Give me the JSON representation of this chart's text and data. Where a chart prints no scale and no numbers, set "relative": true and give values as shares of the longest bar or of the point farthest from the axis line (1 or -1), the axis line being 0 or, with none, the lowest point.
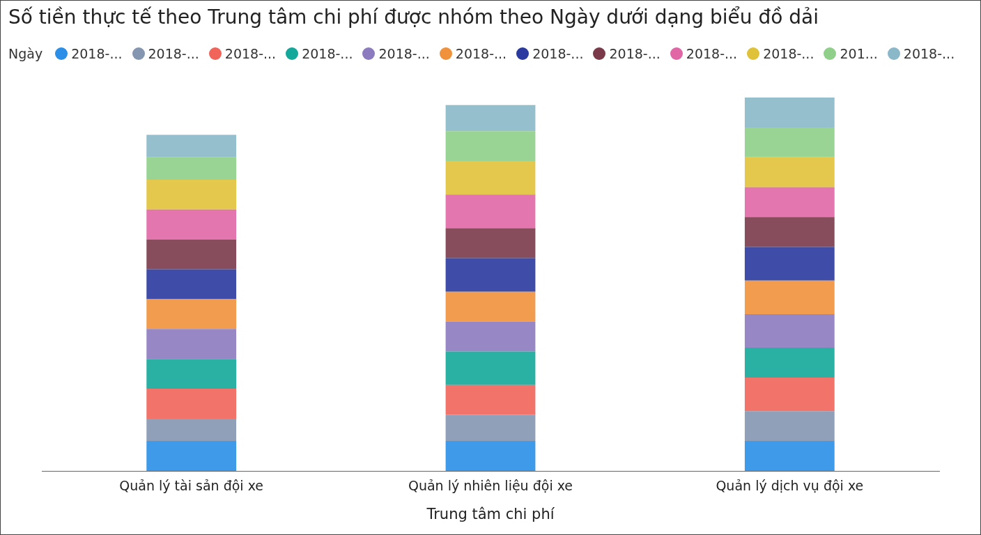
{
  "chart_data": {
    "type": "bar",
    "title": "Số tiền thực tế theo Trung tâm chi phí được nhóm theo Ngày dưới dạng biểu đồ dải",
    "xlabel": "Trung tâm chi phí",
    "legend_title": "Ngày",
    "legend": "top left",
    "stacked": true,
    "relative": true,
    "grid": false,
    "categories": [
      "Quản lý tài sản đội xe",
      "Quản lý nhiên liệu đội xe",
      "Quản lý dịch vụ đội xe"
    ],
    "series": [
      {
        "name": "2018-...",
        "color": "#2b8fe8",
        "values": [
          0.08,
          0.08,
          0.08
        ]
      },
      {
        "name": "2018-...",
        "color": "#8496b0",
        "values": [
          0.06,
          0.07,
          0.08
        ]
      },
      {
        "name": "2018-...",
        "color": "#f0645a",
        "values": [
          0.08,
          0.08,
          0.09
        ]
      },
      {
        "name": "2018-...",
        "color": "#14a89a",
        "values": [
          0.08,
          0.09,
          0.08
        ]
      },
      {
        "name": "2018-...",
        "color": "#8c7bbf",
        "values": [
          0.08,
          0.08,
          0.09
        ]
      },
      {
        "name": "2018-...",
        "color": "#f0913c",
        "values": [
          0.08,
          0.08,
          0.09
        ]
      },
      {
        "name": "2018-...",
        "color": "#2a3a9e",
        "values": [
          0.08,
          0.09,
          0.09
        ]
      },
      {
        "name": "2018-...",
        "color": "#7a3a4a",
        "values": [
          0.08,
          0.08,
          0.08
        ]
      },
      {
        "name": "2018-...",
        "color": "#e066a6",
        "values": [
          0.08,
          0.09,
          0.08
        ]
      },
      {
        "name": "2018-...",
        "color": "#e0c23a",
        "values": [
          0.08,
          0.09,
          0.08
        ]
      },
      {
        "name": "201...",
        "color": "#8fcf8a",
        "values": [
          0.06,
          0.08,
          0.08
        ]
      },
      {
        "name": "2018-...",
        "color": "#8ab8c8",
        "values": [
          0.06,
          0.07,
          0.08
        ]
      }
    ]
  }
}
